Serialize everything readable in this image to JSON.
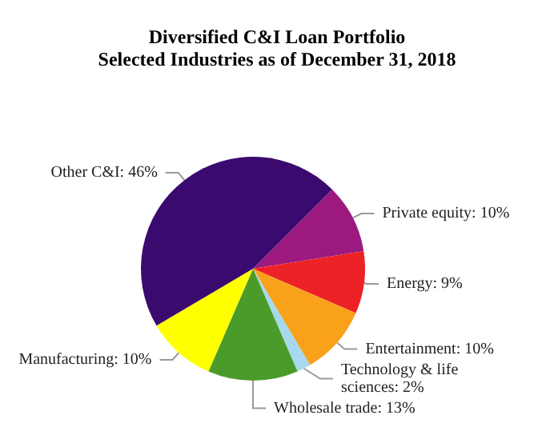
{
  "chart_data": {
    "type": "pie",
    "title": "Diversified C&I Loan Portfolio",
    "subtitle": "Selected Industries as of December 31, 2018",
    "categories": [
      "Private equity",
      "Energy",
      "Entertainment",
      "Technology & life sciences",
      "Wholesale trade",
      "Manufacturing",
      "Other C&I"
    ],
    "values": [
      10,
      9,
      10,
      2,
      13,
      10,
      46
    ],
    "colors": [
      "#9c1a80",
      "#ec2227",
      "#f9a11b",
      "#a6d9ee",
      "#4b9b2b",
      "#ffff00",
      "#3b0a6e"
    ],
    "value_labels": [
      "10%",
      "9%",
      "10%",
      "2%",
      "13%",
      "10%",
      "46%"
    ],
    "legend": false
  }
}
